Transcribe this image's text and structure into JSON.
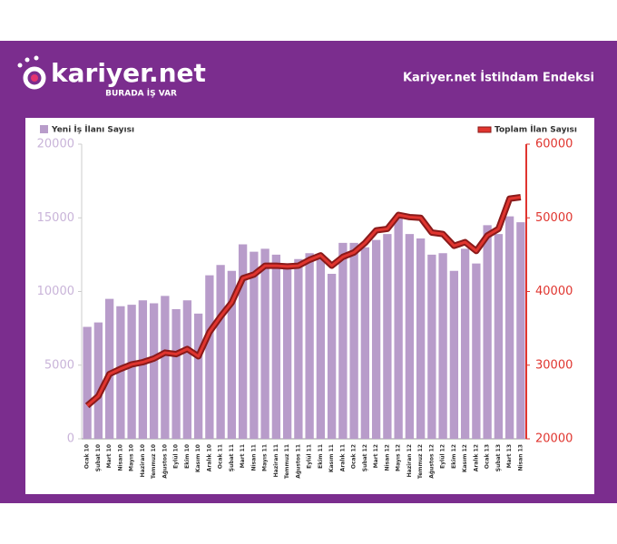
{
  "brand": {
    "name": "kariyer.net",
    "tagline": "BURADA İŞ VAR"
  },
  "chart_data": {
    "type": "bar_line",
    "title": "Kariyer.net İstihdam Endeksi",
    "categories": [
      "Ocak 10",
      "Şubat 10",
      "Mart 10",
      "Nisan 10",
      "Mayıs 10",
      "Haziran 10",
      "Temmuz 10",
      "Ağustos 10",
      "Eylül 10",
      "Ekim 10",
      "Kasım 10",
      "Aralık 10",
      "Ocak 11",
      "Şubat 11",
      "Mart 11",
      "Nisan 11",
      "Mayıs 11",
      "Haziran 11",
      "Temmuz 11",
      "Ağustos 11",
      "Eylül 11",
      "Ekim 11",
      "Kasım 11",
      "Aralık 11",
      "Ocak 12",
      "Şubat 12",
      "Mart 12",
      "Nisan 12",
      "Mayıs 12",
      "Haziran 12",
      "Temmuz 12",
      "Ağustos 12",
      "Eylül 12",
      "Ekim 12",
      "Kasım 12",
      "Aralık 12",
      "Ocak 13",
      "Şubat 13",
      "Mart 13",
      "Nisan 13"
    ],
    "series": [
      {
        "name": "Yeni İş İlanı Sayısı",
        "color": "#b89cca",
        "type": "bar",
        "values": [
          7600,
          7900,
          9500,
          9000,
          9100,
          9400,
          9200,
          9700,
          8800,
          9400,
          8500,
          11100,
          11800,
          11400,
          13200,
          12700,
          12900,
          12500,
          11700,
          12200,
          12600,
          12300,
          11200,
          13300,
          13300,
          13000,
          13500,
          13900,
          15200,
          13900,
          13600,
          12500,
          12600,
          11400,
          12900,
          11900,
          14500,
          13900,
          15100,
          14700
        ]
      },
      {
        "name": "Toplam İlan Sayısı",
        "color": "#e0352f",
        "type": "line",
        "axis": "y2",
        "values": [
          24500,
          25800,
          28800,
          29500,
          30100,
          30400,
          30900,
          31700,
          31500,
          32200,
          31200,
          34500,
          36600,
          38500,
          41800,
          42300,
          43500,
          43500,
          43400,
          43500,
          44300,
          44900,
          43500,
          44700,
          45300,
          46600,
          48300,
          48500,
          50400,
          50100,
          50000,
          48000,
          47800,
          46200,
          46700,
          45500,
          47600,
          48500,
          52600,
          52800
        ]
      }
    ],
    "ylim": [
      0,
      20000
    ],
    "yticks": [
      0,
      5000,
      10000,
      15000,
      20000
    ],
    "y2lim": [
      20000,
      60000
    ],
    "y2ticks": [
      20000,
      30000,
      40000,
      50000,
      60000
    ]
  }
}
